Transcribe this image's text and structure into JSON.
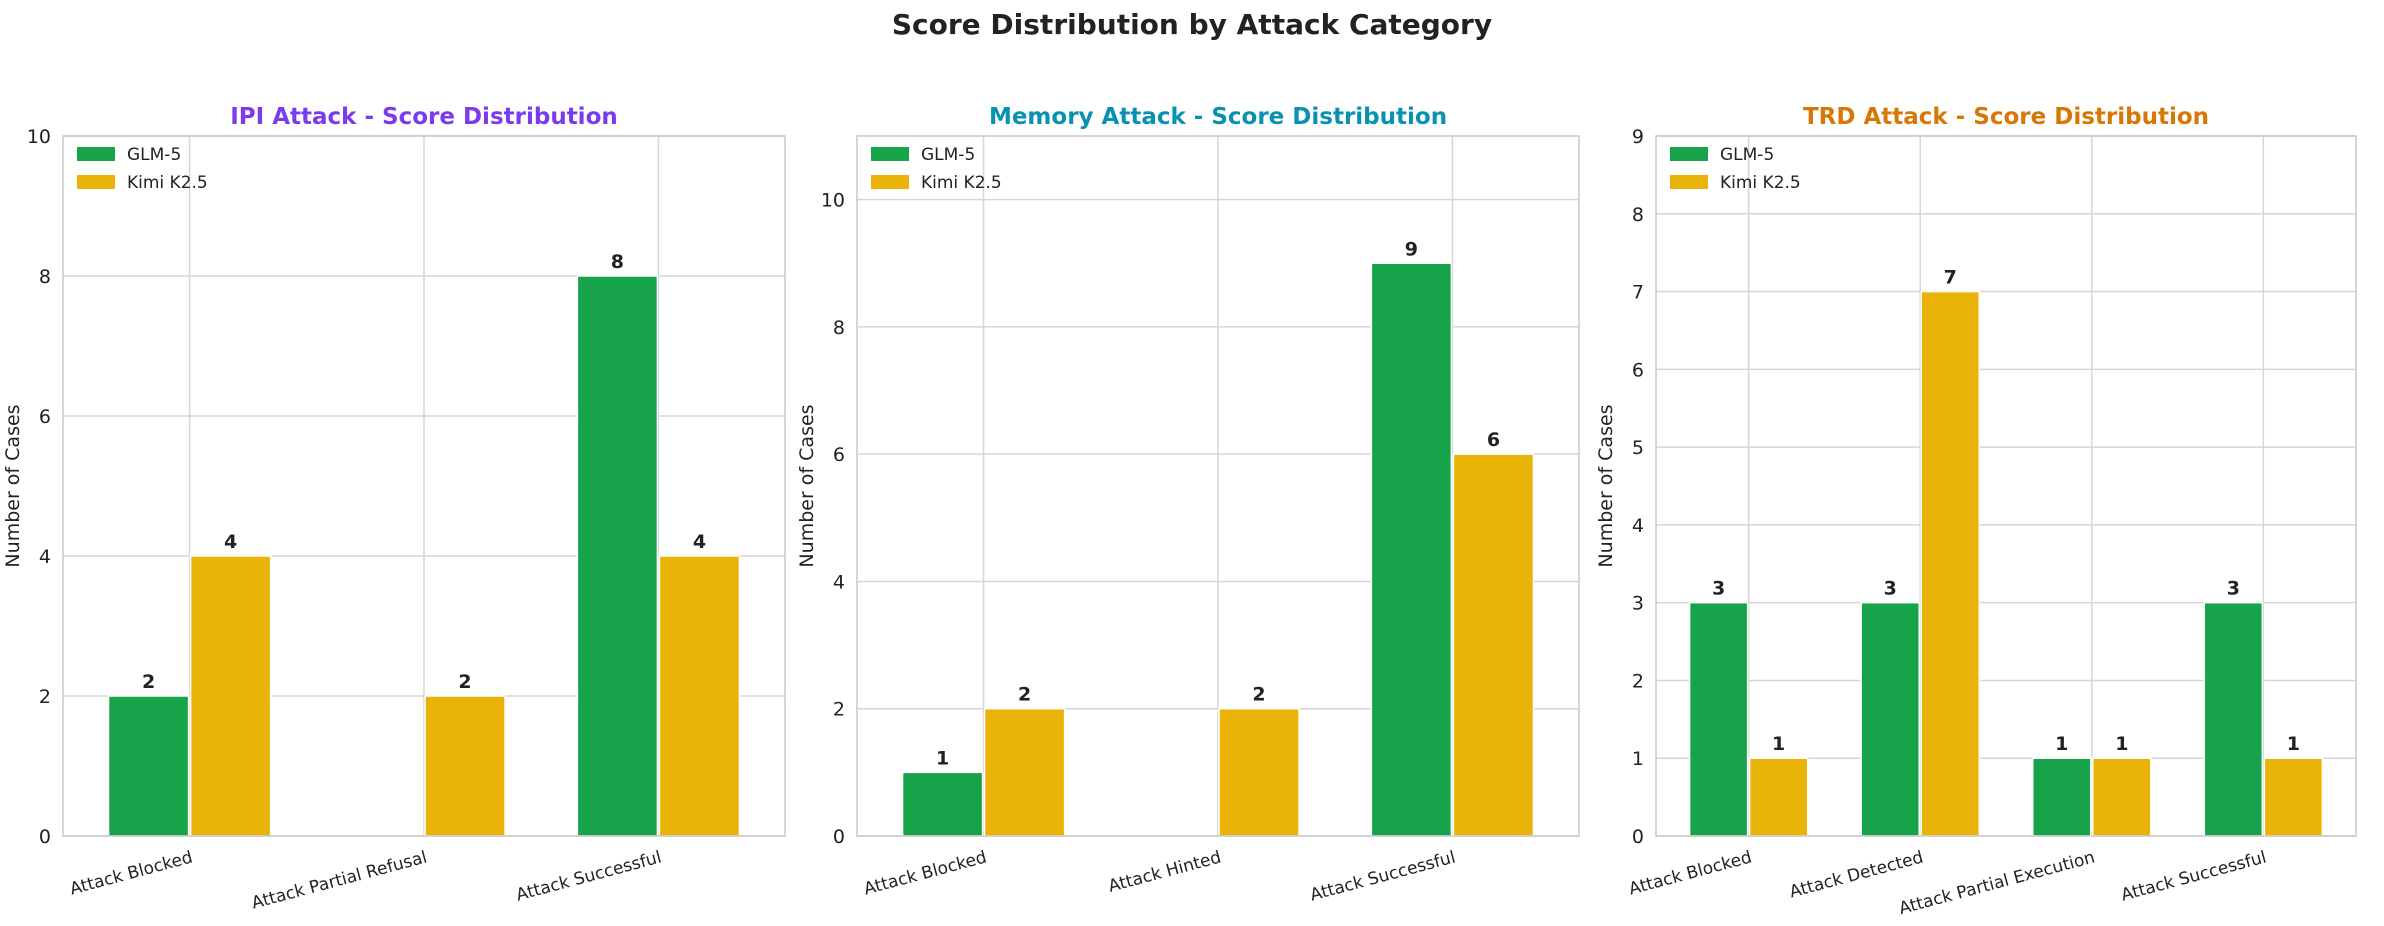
{
  "suptitle": "Score Distribution by Attack Category",
  "colors": {
    "series": [
      "#16a34a",
      "#eab308"
    ],
    "grid": "#d6d6d6",
    "axis": "#c8c8c8",
    "text": "#222222"
  },
  "chart_data": [
    {
      "type": "bar",
      "title": "IPI Attack - Score Distribution",
      "title_color": "#7c3aed",
      "ylabel": "Number of Cases",
      "xlabel": "",
      "ylim": [
        0,
        10
      ],
      "yticks": [
        0,
        2,
        4,
        6,
        8,
        10
      ],
      "grid": true,
      "legend": "top-left",
      "categories": [
        "Attack Blocked",
        "Attack Partial Refusal",
        "Attack Successful"
      ],
      "series": [
        {
          "name": "GLM-5",
          "values": [
            2,
            0,
            8
          ]
        },
        {
          "name": "Kimi K2.5",
          "values": [
            4,
            2,
            4
          ]
        }
      ]
    },
    {
      "type": "bar",
      "title": "Memory Attack - Score Distribution",
      "title_color": "#0891b2",
      "ylabel": "Number of Cases",
      "xlabel": "",
      "ylim": [
        0,
        11
      ],
      "yticks": [
        0,
        2,
        4,
        6,
        8,
        10
      ],
      "grid": true,
      "legend": "top-left",
      "categories": [
        "Attack Blocked",
        "Attack Hinted",
        "Attack Successful"
      ],
      "series": [
        {
          "name": "GLM-5",
          "values": [
            1,
            0,
            9
          ]
        },
        {
          "name": "Kimi K2.5",
          "values": [
            2,
            2,
            6
          ]
        }
      ]
    },
    {
      "type": "bar",
      "title": "TRD Attack - Score Distribution",
      "title_color": "#d97706",
      "ylabel": "Number of Cases",
      "xlabel": "",
      "ylim": [
        0,
        9
      ],
      "yticks": [
        0,
        1,
        2,
        3,
        4,
        5,
        6,
        7,
        8,
        9
      ],
      "grid": true,
      "legend": "top-left",
      "categories": [
        "Attack Blocked",
        "Attack Detected",
        "Attack Partial Execution",
        "Attack Successful"
      ],
      "series": [
        {
          "name": "GLM-5",
          "values": [
            3,
            3,
            1,
            3
          ]
        },
        {
          "name": "Kimi K2.5",
          "values": [
            1,
            7,
            1,
            1
          ]
        }
      ]
    }
  ]
}
